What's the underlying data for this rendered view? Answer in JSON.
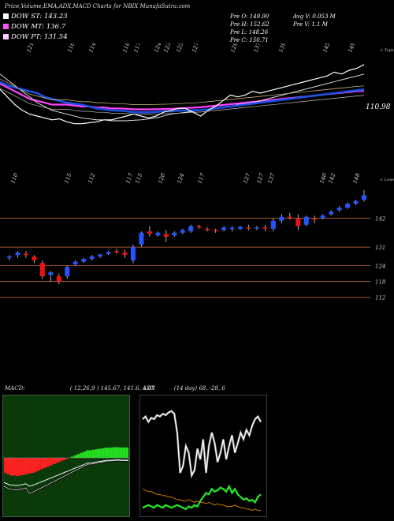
{
  "header": {
    "title": "Price,Volume,EMA,ADX,MACD Charts for NBIX",
    "site": "MunafaSutra.com"
  },
  "legend": {
    "items": [
      {
        "label": "DOW ST: 143.23",
        "color": "#ffffff"
      },
      {
        "label": "DOW MT: 136.7",
        "color": "#ff55ff"
      },
      {
        "label": "DOW PT: 131.54",
        "color": "#ffccff"
      }
    ]
  },
  "stats": {
    "pre_open": "Pre   O: 149.00",
    "pre_high": "Pre   H: 152.62",
    "pre_low": "Pre   L: 148.26",
    "pre_close": "Pre   C: 150.71",
    "avg_volume": "Avg V: 0.053 M",
    "pre_volume": "Pre   V: 1.1 M"
  },
  "colors": {
    "background": "#000000",
    "bull": "#2255ff",
    "bear": "#ee1111",
    "grid": "#a0522d",
    "ema_fast": "#1a4fe0",
    "ema_slow": "#ff44ff",
    "macd_hist_pos": "#22dd22",
    "macd_hist_neg": "#ff2222",
    "adx_line": "#22ee22",
    "adx_minus_di": "#cc7700"
  },
  "chart_data": [
    {
      "type": "line",
      "name": "ema_panel",
      "top_labels": [
        "121",
        "116",
        "114",
        "118",
        "117",
        "124",
        "123",
        "125",
        "127",
        "129",
        "137",
        "139",
        "145",
        "149"
      ],
      "top_right_label": "< Tops",
      "price_label": "110.98",
      "x": [
        1,
        2,
        3,
        4,
        5,
        6,
        7,
        8,
        9,
        10,
        11,
        12,
        13,
        14,
        15,
        16,
        17,
        18,
        19,
        20,
        21,
        22,
        23,
        24,
        25,
        26,
        27,
        28,
        29,
        30,
        31,
        32,
        33,
        34,
        35,
        36,
        37,
        38,
        39,
        40,
        41,
        42,
        43,
        44,
        45,
        46,
        47,
        48,
        49,
        50
      ],
      "series": [
        {
          "values": [
            102,
            100,
            99,
            98,
            97,
            96,
            94,
            93,
            92,
            91,
            90.5,
            90,
            89,
            88,
            87.5,
            87,
            86.8,
            86.5,
            86,
            86,
            86,
            86.2,
            86.5,
            86.5,
            86.8,
            87,
            87,
            87.2,
            87.5,
            88,
            88.5,
            89,
            89.5,
            90,
            90.5,
            91,
            91.5,
            92,
            92.5,
            93,
            93.5,
            94,
            94.5,
            95,
            95.5,
            96,
            96.5,
            97,
            97.5,
            98
          ]
        },
        {
          "values": [
            101,
            99,
            97,
            95,
            93,
            92,
            91,
            90,
            90,
            90,
            89.5,
            89,
            89,
            88.5,
            88.5,
            88,
            88,
            87.8,
            87.5,
            87.5,
            87.5,
            87.6,
            87.7,
            87.8,
            88,
            88.2,
            88.4,
            88.6,
            89,
            89.4,
            89.8,
            90.2,
            90.6,
            91,
            91.4,
            91.8,
            92.2,
            92.6,
            93,
            93.4,
            93.8,
            94.2,
            94.6,
            95,
            95.4,
            95.8,
            96.2,
            96.6,
            97,
            97.3
          ]
        },
        {
          "values": [
            106,
            103,
            100,
            97,
            94,
            91,
            89,
            87,
            86,
            85,
            84,
            83,
            82.5,
            82,
            82,
            81.5,
            81.5,
            81.5,
            81.8,
            82,
            82.5,
            83,
            84,
            85,
            85.5,
            86,
            86.5,
            87,
            87.5,
            88,
            88.5,
            89,
            90,
            90.5,
            91,
            92,
            93,
            94,
            95,
            96,
            97,
            98,
            99,
            100,
            101,
            102,
            103,
            104,
            105,
            106
          ]
        },
        {
          "values": [
            98,
            94,
            90,
            87,
            85,
            84,
            83,
            82,
            82.5,
            81,
            80,
            80,
            80.5,
            81,
            82,
            82,
            83,
            84,
            85,
            84,
            83,
            84,
            86,
            87,
            88,
            88,
            86,
            84,
            87,
            89,
            92,
            95,
            94,
            95,
            97,
            96,
            97,
            98,
            99,
            100,
            101,
            102,
            103,
            104,
            105,
            107,
            106,
            108,
            109,
            111
          ]
        }
      ]
    },
    {
      "type": "candlestick",
      "name": "price_panel",
      "bottom_labels": [
        "110",
        "115",
        "112",
        "117",
        "115",
        "120",
        "124",
        "117",
        "127",
        "127",
        "137",
        "140",
        "142",
        "148"
      ],
      "bottom_right_label": "< Lows",
      "y_ticks": [
        112,
        118,
        124,
        131,
        142
      ],
      "ylim": [
        108,
        152
      ],
      "candles": [
        {
          "o": 127,
          "h": 128,
          "l": 126,
          "c": 127.5
        },
        {
          "o": 128,
          "h": 129.5,
          "l": 127,
          "c": 129
        },
        {
          "o": 128.5,
          "h": 129.5,
          "l": 127,
          "c": 128
        },
        {
          "o": 127.5,
          "h": 128,
          "l": 125,
          "c": 126
        },
        {
          "o": 125,
          "h": 126,
          "l": 119,
          "c": 120
        },
        {
          "o": 120.5,
          "h": 122,
          "l": 118,
          "c": 121.5
        },
        {
          "o": 120,
          "h": 121,
          "l": 117,
          "c": 118
        },
        {
          "o": 120,
          "h": 124,
          "l": 119,
          "c": 123.5
        },
        {
          "o": 124.5,
          "h": 126,
          "l": 124,
          "c": 125.5
        },
        {
          "o": 125.5,
          "h": 127,
          "l": 125,
          "c": 126.5
        },
        {
          "o": 126.5,
          "h": 128,
          "l": 126,
          "c": 127.5
        },
        {
          "o": 127.5,
          "h": 128.5,
          "l": 127,
          "c": 128.2
        },
        {
          "o": 128.5,
          "h": 129.5,
          "l": 128,
          "c": 129.2
        },
        {
          "o": 129.5,
          "h": 130.5,
          "l": 128.5,
          "c": 129
        },
        {
          "o": 129,
          "h": 130,
          "l": 127,
          "c": 128
        },
        {
          "o": 126,
          "h": 132,
          "l": 125,
          "c": 131
        },
        {
          "o": 132,
          "h": 137,
          "l": 131,
          "c": 136.5
        },
        {
          "o": 137,
          "h": 139,
          "l": 135,
          "c": 136
        },
        {
          "o": 135.5,
          "h": 137,
          "l": 135,
          "c": 136.5
        },
        {
          "o": 136,
          "h": 137.5,
          "l": 133,
          "c": 135
        },
        {
          "o": 135.5,
          "h": 137,
          "l": 135,
          "c": 136.5
        },
        {
          "o": 136.5,
          "h": 138,
          "l": 136,
          "c": 137.5
        },
        {
          "o": 137,
          "h": 139.5,
          "l": 136.5,
          "c": 139
        },
        {
          "o": 139,
          "h": 139.5,
          "l": 138,
          "c": 138.5
        },
        {
          "o": 138,
          "h": 138.5,
          "l": 137,
          "c": 137.5
        },
        {
          "o": 137.5,
          "h": 138,
          "l": 136.5,
          "c": 137.2
        },
        {
          "o": 137.5,
          "h": 139,
          "l": 137,
          "c": 138.5
        },
        {
          "o": 138,
          "h": 139,
          "l": 137,
          "c": 138.3
        },
        {
          "o": 138,
          "h": 139,
          "l": 137.5,
          "c": 138.8
        },
        {
          "o": 138.5,
          "h": 139.5,
          "l": 137.5,
          "c": 138.3
        },
        {
          "o": 138.5,
          "h": 139,
          "l": 137.5,
          "c": 138.5
        },
        {
          "o": 138.5,
          "h": 139.5,
          "l": 137,
          "c": 138
        },
        {
          "o": 138,
          "h": 142,
          "l": 137,
          "c": 141
        },
        {
          "o": 141,
          "h": 143.5,
          "l": 140,
          "c": 142.5
        },
        {
          "o": 142.5,
          "h": 144,
          "l": 141.5,
          "c": 142
        },
        {
          "o": 142,
          "h": 143.5,
          "l": 137.5,
          "c": 139
        },
        {
          "o": 139.5,
          "h": 143,
          "l": 139,
          "c": 142.5
        },
        {
          "o": 142,
          "h": 143,
          "l": 140,
          "c": 141.5
        },
        {
          "o": 142,
          "h": 143.5,
          "l": 141.5,
          "c": 143
        },
        {
          "o": 143.5,
          "h": 145,
          "l": 143,
          "c": 144.5
        },
        {
          "o": 145,
          "h": 146.5,
          "l": 144.5,
          "c": 146
        },
        {
          "o": 146,
          "h": 148,
          "l": 145.5,
          "c": 147.5
        },
        {
          "o": 147.5,
          "h": 149,
          "l": 147,
          "c": 148.5
        },
        {
          "o": 149,
          "h": 152.6,
          "l": 148.3,
          "c": 150.7
        }
      ]
    },
    {
      "type": "bar",
      "name": "macd_panel",
      "title": "MACD:",
      "params": "( 12,26,9 ) 145.67, 141.6, 4.07",
      "values": [
        -6,
        -6.5,
        -7,
        -7,
        -7.2,
        -7,
        -6.8,
        -6.5,
        -6.2,
        -6,
        -5.5,
        -5,
        -4.5,
        -4,
        -3.5,
        -3,
        -2.5,
        -2,
        -1.5,
        -1,
        -0.5,
        0,
        0.5,
        1,
        1.5,
        2,
        2.5,
        3,
        3,
        3.2,
        3.4,
        3.6,
        3.8,
        4,
        4,
        4.1,
        4.2,
        4.2,
        4.1,
        4.1,
        4.07
      ]
    },
    {
      "type": "line",
      "name": "adx_panel",
      "title": "ADX",
      "params": "(14 day) 68, -28, 6",
      "series": [
        {
          "values": [
            70,
            72,
            68,
            71,
            70,
            73,
            72,
            74,
            73,
            75,
            76,
            74,
            60,
            30,
            35,
            50,
            45,
            28,
            32,
            48,
            40,
            55,
            30,
            50,
            60,
            52,
            38,
            45,
            55,
            40,
            50,
            58,
            45,
            52,
            60,
            55,
            62,
            58,
            65,
            70,
            72,
            68
          ]
        },
        {
          "values": [
            4,
            5,
            6,
            5,
            4,
            6,
            5,
            4,
            6,
            5,
            4,
            5,
            6,
            5,
            4,
            3,
            5,
            4,
            6,
            5,
            9,
            12,
            15,
            14,
            18,
            16,
            17,
            19,
            18,
            16,
            20,
            15,
            18,
            14,
            12,
            10,
            11,
            9,
            10,
            8,
            12,
            14
          ]
        },
        {
          "values": [
            18,
            17,
            16,
            16,
            15,
            14,
            14,
            13,
            13,
            12,
            12,
            11,
            10,
            10,
            9,
            9,
            10,
            9,
            8,
            9,
            8,
            8,
            7,
            8,
            7,
            6,
            7,
            6,
            6,
            5,
            5,
            5,
            6,
            5,
            4,
            4,
            3,
            3,
            2,
            3,
            2,
            2
          ]
        }
      ]
    }
  ]
}
